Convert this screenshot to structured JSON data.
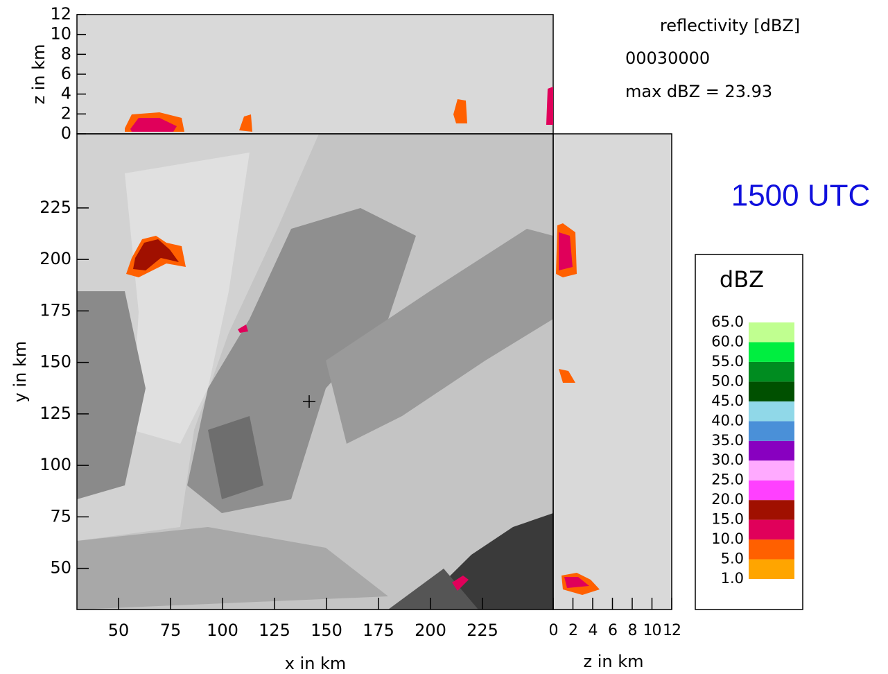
{
  "chart_data": {
    "type": "contour",
    "title": "reflectivity [dBZ]",
    "subtitle": "00030000",
    "annotation": "max dBZ = 23.93",
    "time_label": "1500 UTC",
    "x_label": "x in km",
    "y_label": "y in km",
    "z_label": "z in km",
    "xlim": [
      30,
      259
    ],
    "xticks": [
      50,
      75,
      100,
      125,
      150,
      175,
      200,
      225
    ],
    "ylim": [
      30,
      261
    ],
    "yticks": [
      50,
      75,
      100,
      125,
      150,
      175,
      200,
      225
    ],
    "zlim": [
      0,
      12
    ],
    "zticks": [
      0,
      2,
      4,
      6,
      8,
      10,
      12
    ],
    "legend": {
      "title": "dBZ",
      "levels": [
        {
          "value": 1,
          "label": "1.0"
        },
        {
          "value": 5,
          "label": "5.0"
        },
        {
          "value": 10,
          "label": "10.0"
        },
        {
          "value": 15,
          "label": "15.0"
        },
        {
          "value": 20,
          "label": "20.0"
        },
        {
          "value": 25,
          "label": "25.0"
        },
        {
          "value": 30,
          "label": "30.0"
        },
        {
          "value": 35,
          "label": "35.0"
        },
        {
          "value": 40,
          "label": "40.0"
        },
        {
          "value": 45,
          "label": "45.0"
        },
        {
          "value": 50,
          "label": "50.0"
        },
        {
          "value": 55,
          "label": "55.0"
        },
        {
          "value": 60,
          "label": "60.0"
        },
        {
          "value": 65,
          "label": "65.0"
        }
      ],
      "colors": [
        "#ffa500",
        "#ff6000",
        "#e0005a",
        "#a01000",
        "#ff40ff",
        "#ffaaff",
        "#8800c0",
        "#4a90d8",
        "#90d8e8",
        "#005000",
        "#008c20",
        "#00ee40",
        "#c0ff90"
      ]
    }
  }
}
